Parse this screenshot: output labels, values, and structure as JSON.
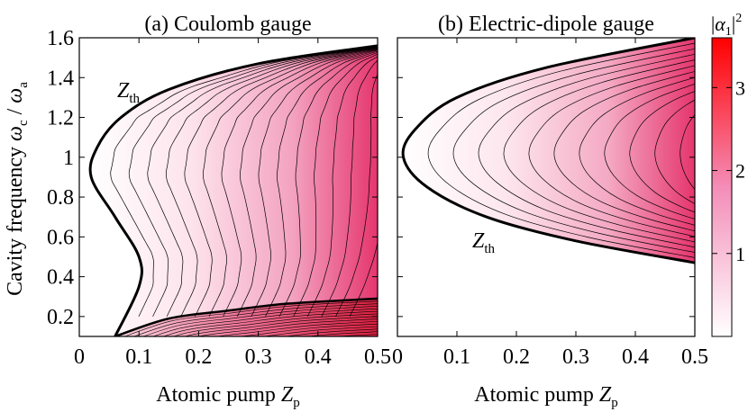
{
  "chart_data": [
    {
      "type": "heatmap",
      "panel": "a",
      "title": "(a) Coulomb gauge",
      "xlabel_main": "Atomic pump ",
      "xlabel_var": "Z",
      "xlabel_sub": "p",
      "ylabel_main": "Cavity frequency ",
      "ylabel_var1": "ω",
      "ylabel_sub1": "c",
      "ylabel_sep": " / ",
      "ylabel_var2": "ω",
      "ylabel_sub2": "a",
      "xlim": [
        0,
        0.5
      ],
      "ylim": [
        0.1,
        1.6
      ],
      "xticks": [
        0,
        0.1,
        0.2,
        0.3,
        0.4,
        0.5
      ],
      "xtick_labels": [
        "0",
        "0.1",
        "0.2",
        "0.3",
        "0.4",
        "0.5"
      ],
      "yticks": [
        0.2,
        0.4,
        0.6,
        0.8,
        1.0,
        1.2,
        1.4,
        1.6
      ],
      "ytick_labels": [
        "0.2",
        "0.4",
        "0.6",
        "0.8",
        "1",
        "1.2",
        "1.4",
        "1.6"
      ],
      "threshold_label_var": "Z",
      "threshold_label_sub": "th",
      "threshold_curve": [
        [
          0.06,
          0.1
        ],
        [
          0.1,
          0.35
        ],
        [
          0.1,
          0.5
        ],
        [
          0.06,
          0.7
        ],
        [
          0.02,
          0.9
        ],
        [
          0.03,
          1.05
        ],
        [
          0.07,
          1.2
        ],
        [
          0.15,
          1.34
        ],
        [
          0.3,
          1.47
        ],
        [
          0.5,
          1.56
        ]
      ],
      "lower_boundary": [
        [
          0.06,
          0.1
        ],
        [
          0.15,
          0.19
        ],
        [
          0.25,
          0.23
        ],
        [
          0.35,
          0.265
        ],
        [
          0.5,
          0.29
        ]
      ],
      "contour_levels": 16
    },
    {
      "type": "heatmap",
      "panel": "b",
      "title": "(b) Electric-dipole gauge",
      "xlabel_main": "Atomic pump ",
      "xlabel_var": "Z",
      "xlabel_sub": "p",
      "xlim": [
        0,
        0.5
      ],
      "ylim": [
        0.1,
        1.6
      ],
      "xticks": [
        0,
        0.1,
        0.2,
        0.3,
        0.4,
        0.5
      ],
      "xtick_labels": [
        "0",
        "0.1",
        "0.2",
        "0.3",
        "0.4",
        "0.5"
      ],
      "threshold_label_var": "Z",
      "threshold_label_sub": "th",
      "threshold_curve": [
        [
          0.5,
          0.47
        ],
        [
          0.3,
          0.58
        ],
        [
          0.15,
          0.7
        ],
        [
          0.05,
          0.85
        ],
        [
          0.01,
          1.0
        ],
        [
          0.03,
          1.14
        ],
        [
          0.1,
          1.3
        ],
        [
          0.25,
          1.45
        ],
        [
          0.5,
          1.6
        ]
      ],
      "contour_levels": 12
    }
  ],
  "colorbar": {
    "label_var": "α",
    "label_sub": "1",
    "label_pow": "2",
    "range": [
      0,
      3.6
    ],
    "ticks": [
      1,
      2,
      3
    ],
    "tick_labels": [
      "1",
      "2",
      "3"
    ],
    "color_low": "#ffffff",
    "color_high": "#ff0000"
  },
  "colors": {
    "fill_low": "#ffffff",
    "fill_mid": "#ef7fa7",
    "fill_high": "#e5336d",
    "dense_fill": "#de4669",
    "line": "#000000"
  }
}
